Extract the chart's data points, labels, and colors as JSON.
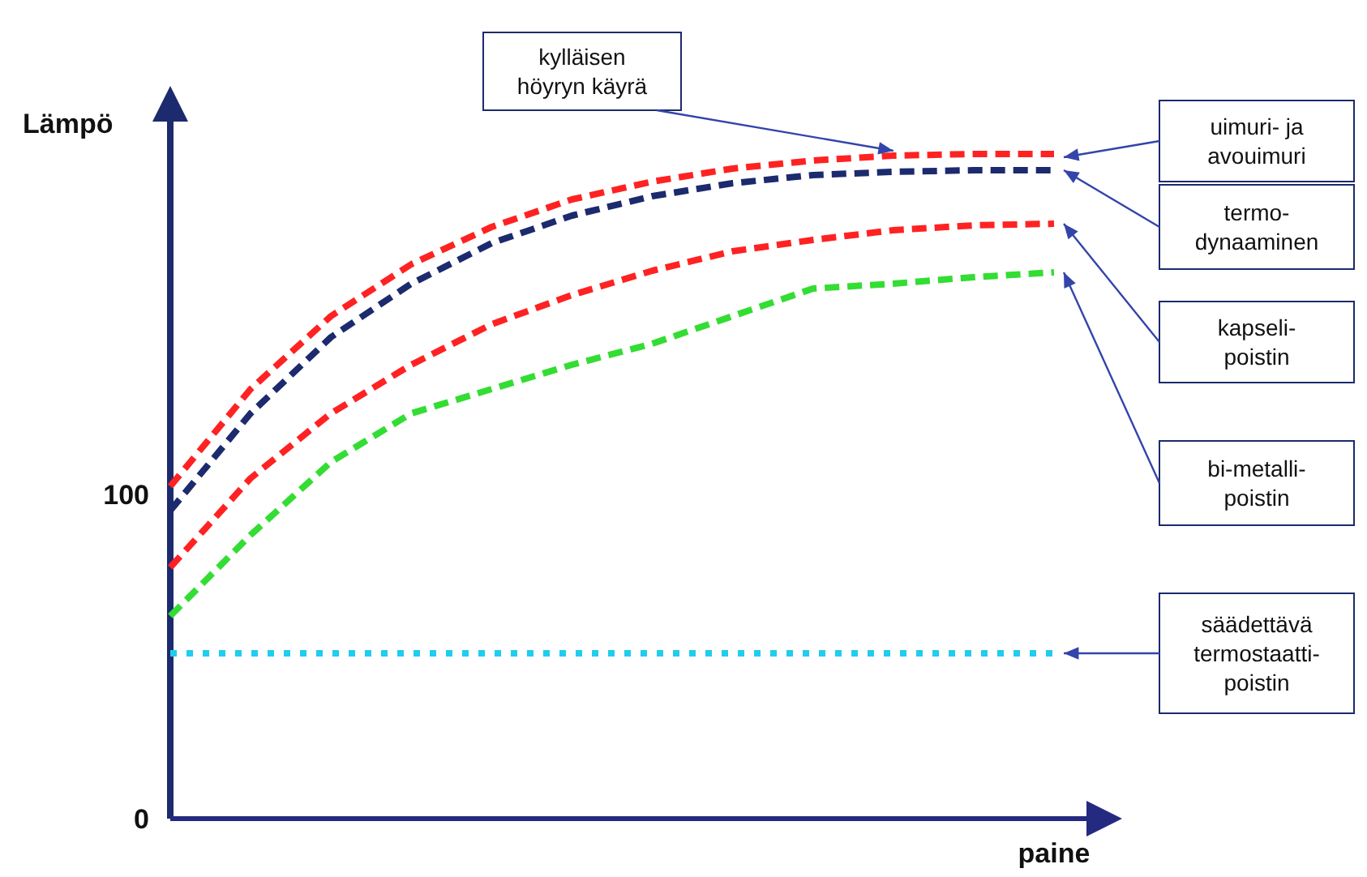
{
  "chart_data": {
    "type": "line",
    "xlabel": "paine",
    "ylabel": "Lämpö",
    "categories": [
      null,
      null,
      null,
      null,
      null,
      null,
      null,
      null,
      null,
      null,
      null,
      null
    ],
    "ylim": [
      0,
      215
    ],
    "yticks": [
      0,
      100
    ],
    "grid": false,
    "legend": false,
    "series": [
      {
        "name": "uimuri- ja avouimuri",
        "color": "#ff2222",
        "line_style": "dashed",
        "values": [
          102.5,
          132.5,
          155,
          171,
          182.5,
          191,
          196.5,
          200.5,
          203,
          204.5,
          205,
          205
        ]
      },
      {
        "name": "termo-dynaaminen",
        "color": "#1c2a6e",
        "line_style": "dashed",
        "values": [
          95,
          125,
          148.5,
          165,
          177.5,
          186,
          192,
          196,
          198.5,
          199.5,
          200,
          200
        ]
      },
      {
        "name": "kapseli-poistin",
        "color": "#ff2222",
        "line_style": "dashed",
        "values": [
          77.5,
          105,
          125,
          140,
          152.5,
          161.5,
          169,
          175,
          178.5,
          181.5,
          183,
          183.5
        ]
      },
      {
        "name": "bi-metalli-poistin",
        "color": "#33dd33",
        "line_style": "dashed",
        "values": [
          62.5,
          87.5,
          110,
          125,
          132.5,
          140,
          146.5,
          155,
          163.5,
          165,
          167,
          168.5
        ]
      },
      {
        "name": "säädettävä termostaatti-poistin",
        "color": "#22ccee",
        "line_style": "dotted",
        "values": [
          51,
          51,
          51,
          51,
          51,
          51,
          51,
          51,
          51,
          51,
          51,
          51
        ]
      }
    ],
    "annotations": [
      "kylläisen höyryn käyrä"
    ]
  }
}
